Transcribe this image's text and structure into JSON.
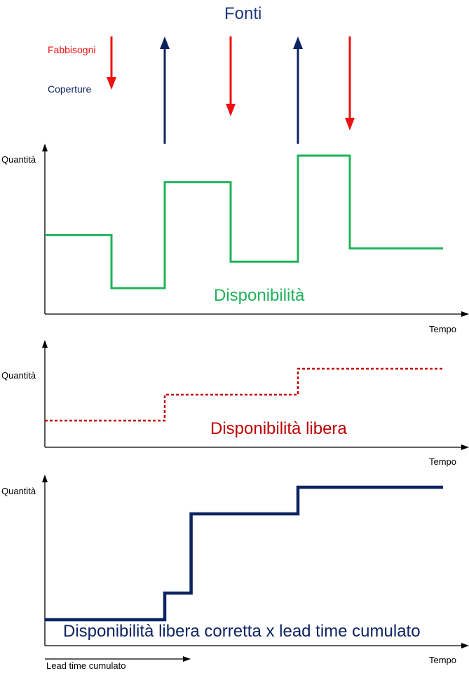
{
  "header": {
    "title": "Fonti"
  },
  "legend": {
    "requirements": "Fabbisogni",
    "coverages": "Coperture"
  },
  "colors": {
    "title": "#1f3a7a",
    "requirements": "#ee1111",
    "coverages": "#0c2461",
    "availability": "#1fb35a",
    "free_availability": "#c00000",
    "corrected": "#0c2461",
    "axis": "#000000"
  },
  "events": [
    {
      "type": "requirement",
      "time": 1.0
    },
    {
      "type": "coverage",
      "time": 2.0
    },
    {
      "type": "requirement",
      "time": 3.0
    },
    {
      "type": "coverage",
      "time": 4.0
    },
    {
      "type": "requirement",
      "time": 5.0
    }
  ],
  "panels": [
    {
      "id": "availability",
      "y_axis_label": "Quantità",
      "x_axis_label": "Tempo",
      "series_label": "Disponibilità",
      "line_style": "solid",
      "steps": [
        [
          0,
          3
        ],
        [
          1,
          1
        ],
        [
          2,
          5
        ],
        [
          3,
          2
        ],
        [
          4,
          6
        ],
        [
          5,
          2.5
        ],
        [
          6,
          2.5
        ]
      ]
    },
    {
      "id": "free-availability",
      "y_axis_label": "Quantità",
      "x_axis_label": "Tempo",
      "series_label": "Disponibilità libera",
      "line_style": "dotted",
      "steps": [
        [
          0,
          1
        ],
        [
          2,
          2
        ],
        [
          4,
          3
        ],
        [
          6,
          3
        ]
      ]
    },
    {
      "id": "corrected-availability",
      "y_axis_label": "Quantità",
      "x_axis_label": "Tempo",
      "series_label": "Disponibilità libera corretta x lead time cumulato",
      "line_style": "thick",
      "steps": [
        [
          0,
          0
        ],
        [
          2,
          1
        ],
        [
          2.4,
          5
        ],
        [
          4,
          6
        ],
        [
          6,
          6
        ]
      ]
    }
  ],
  "lead_time": {
    "label": "Lead time cumulato"
  }
}
